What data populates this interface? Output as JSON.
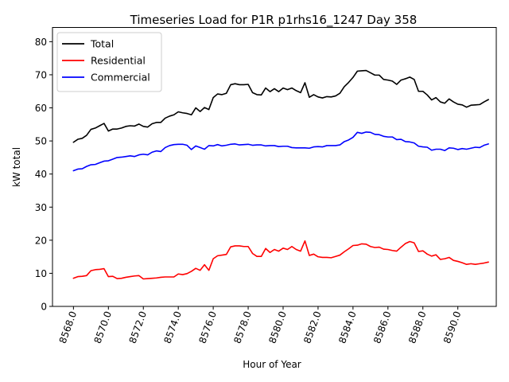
{
  "chart_data": {
    "type": "line",
    "title": "Timeseries Load for P1R p1rhs16_1247  Day 358",
    "xlabel": "Hour of Year",
    "ylabel": "kW total",
    "xlim": [
      8566.8,
      8592.2
    ],
    "ylim": [
      0,
      84.3
    ],
    "xticks": [
      8568,
      8570,
      8572,
      8574,
      8576,
      8578,
      8580,
      8582,
      8584,
      8586,
      8588,
      8590
    ],
    "xtick_labels": [
      "8568.0",
      "8570.0",
      "8572.0",
      "8574.0",
      "8576.0",
      "8578.0",
      "8580.0",
      "8582.0",
      "8584.0",
      "8586.0",
      "8588.0",
      "8590.0"
    ],
    "yticks": [
      0,
      10,
      20,
      30,
      40,
      50,
      60,
      70,
      80
    ],
    "ytick_labels": [
      "0",
      "10",
      "20",
      "30",
      "40",
      "50",
      "60",
      "70",
      "80"
    ],
    "grid": false,
    "legend_position": "top-left",
    "x_start": 8568,
    "x_step": 0.25,
    "series": [
      {
        "name": "Total",
        "color": "#000000",
        "values": [
          49.6,
          50.5,
          50.8,
          51.7,
          53.5,
          53.9,
          54.6,
          55.3,
          53.0,
          53.6,
          53.6,
          53.9,
          54.4,
          54.6,
          54.5,
          55.1,
          54.4,
          54.2,
          55.2,
          55.6,
          55.6,
          56.9,
          57.5,
          57.9,
          58.8,
          58.5,
          58.3,
          57.9,
          60.0,
          58.9,
          60.1,
          59.5,
          63.1,
          64.2,
          64.0,
          64.4,
          67.0,
          67.3,
          67.0,
          67.0,
          67.1,
          64.6,
          64.0,
          63.9,
          66.0,
          64.9,
          65.8,
          64.9,
          66.0,
          65.5,
          66.0,
          65.2,
          64.6,
          67.6,
          63.2,
          64.0,
          63.3,
          63.0,
          63.4,
          63.3,
          63.6,
          64.4,
          66.4,
          67.7,
          69.2,
          71.1,
          71.2,
          71.3,
          70.6,
          69.9,
          69.9,
          68.6,
          68.4,
          68.1,
          67.1,
          68.4,
          68.8,
          69.3,
          68.6,
          65.0,
          65.0,
          63.9,
          62.4,
          63.1,
          61.8,
          61.4,
          62.7,
          61.8,
          61.1,
          60.9,
          60.2,
          60.8,
          60.9,
          61.0,
          61.8,
          62.5
        ]
      },
      {
        "name": "Residential",
        "color": "#ff0000",
        "values": [
          8.5,
          9.0,
          9.1,
          9.3,
          10.8,
          11.1,
          11.2,
          11.4,
          9.0,
          9.1,
          8.4,
          8.5,
          8.8,
          9.0,
          9.2,
          9.3,
          8.3,
          8.4,
          8.5,
          8.6,
          8.8,
          8.9,
          8.9,
          8.9,
          9.8,
          9.6,
          9.9,
          10.6,
          11.5,
          10.9,
          12.6,
          10.9,
          14.4,
          15.3,
          15.5,
          15.7,
          18.0,
          18.3,
          18.3,
          18.1,
          18.1,
          16.0,
          15.1,
          15.1,
          17.5,
          16.3,
          17.2,
          16.7,
          17.6,
          17.2,
          18.1,
          17.2,
          16.7,
          19.8,
          15.4,
          15.8,
          15.0,
          14.8,
          14.8,
          14.7,
          15.1,
          15.5,
          16.5,
          17.4,
          18.4,
          18.5,
          18.9,
          18.8,
          18.1,
          17.8,
          17.9,
          17.3,
          17.2,
          16.9,
          16.7,
          17.9,
          19.0,
          19.6,
          19.2,
          16.6,
          16.8,
          15.8,
          15.2,
          15.6,
          14.2,
          14.4,
          14.8,
          13.9,
          13.6,
          13.2,
          12.7,
          12.9,
          12.7,
          12.9,
          13.1,
          13.4
        ]
      },
      {
        "name": "Commercial",
        "color": "#0000ff",
        "values": [
          41.0,
          41.5,
          41.6,
          42.3,
          42.8,
          42.9,
          43.4,
          43.9,
          44.0,
          44.5,
          45.0,
          45.1,
          45.3,
          45.5,
          45.3,
          45.8,
          46.0,
          45.8,
          46.6,
          47.0,
          46.8,
          48.0,
          48.6,
          48.9,
          49.0,
          49.0,
          48.7,
          47.4,
          48.5,
          48.0,
          47.5,
          48.6,
          48.5,
          48.9,
          48.5,
          48.7,
          49.0,
          49.1,
          48.8,
          48.9,
          49.0,
          48.7,
          48.8,
          48.8,
          48.5,
          48.6,
          48.6,
          48.3,
          48.4,
          48.4,
          48.0,
          47.9,
          47.9,
          47.9,
          47.8,
          48.2,
          48.3,
          48.2,
          48.6,
          48.6,
          48.6,
          48.8,
          49.8,
          50.3,
          51.1,
          52.6,
          52.3,
          52.7,
          52.6,
          52.0,
          51.9,
          51.4,
          51.2,
          51.2,
          50.4,
          50.5,
          49.8,
          49.7,
          49.4,
          48.4,
          48.2,
          48.1,
          47.2,
          47.5,
          47.5,
          47.1,
          47.9,
          47.8,
          47.4,
          47.7,
          47.5,
          47.8,
          48.1,
          48.0,
          48.7,
          49.1
        ]
      }
    ]
  }
}
